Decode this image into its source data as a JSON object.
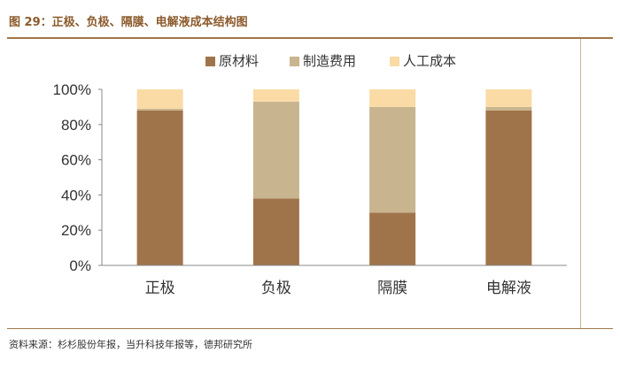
{
  "figure": {
    "title": "图 29：正极、负极、隔膜、电解液成本结构图",
    "source": "资料来源：杉杉股份年报，当升科技年报等，德邦研究所"
  },
  "chart_data": {
    "type": "bar",
    "stacked": true,
    "categories": [
      "正极",
      "负极",
      "隔膜",
      "电解液"
    ],
    "series": [
      {
        "name": "原材料",
        "color": "#A0744A",
        "values": [
          88,
          38,
          30,
          88
        ]
      },
      {
        "name": "制造费用",
        "color": "#C8B48E",
        "values": [
          1,
          55,
          60,
          2
        ]
      },
      {
        "name": "人工成本",
        "color": "#FADBA6",
        "values": [
          11,
          7,
          10,
          10
        ]
      }
    ],
    "y_ticks": [
      "0%",
      "20%",
      "40%",
      "60%",
      "80%",
      "100%"
    ],
    "ylim": [
      0,
      100
    ],
    "legend_position": "top",
    "grid": false
  }
}
